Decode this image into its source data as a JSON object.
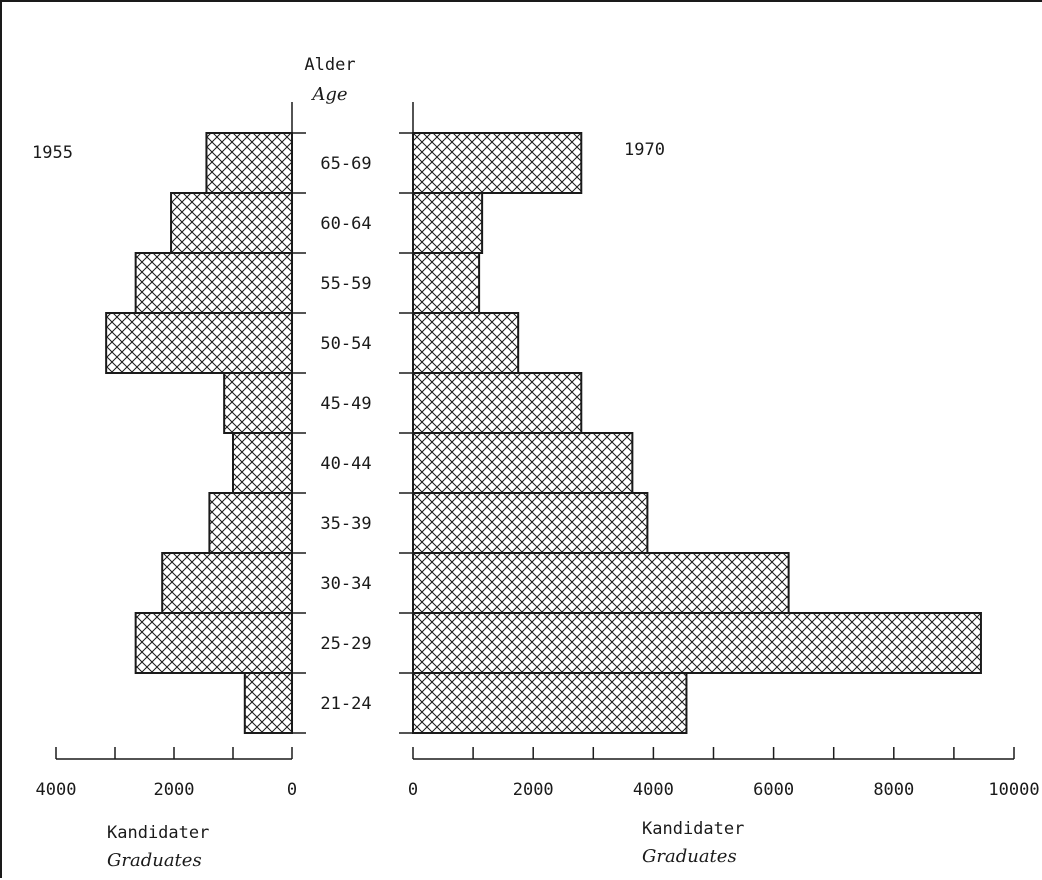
{
  "chart_data": {
    "type": "bar",
    "orientation": "horizontal",
    "layout": "population-pyramid",
    "center_axis_title": "Alder",
    "center_axis_title_alt": "Age",
    "categories": [
      "65-69",
      "60-64",
      "55-59",
      "50-54",
      "45-49",
      "40-44",
      "35-39",
      "30-34",
      "25-29",
      "21-24"
    ],
    "panels": [
      {
        "side": "left",
        "title": "1955",
        "values": [
          1450,
          2050,
          2650,
          3150,
          1150,
          1000,
          1400,
          2200,
          2650,
          800
        ],
        "xlim": [
          0,
          4000
        ],
        "ticks": [
          4000,
          2000,
          0
        ],
        "xlabel": "Kandidater",
        "xlabel_alt": "Graduates"
      },
      {
        "side": "right",
        "title": "1970",
        "values": [
          2800,
          1150,
          1100,
          1750,
          2800,
          3650,
          3900,
          6250,
          9450,
          4550
        ],
        "xlim": [
          0,
          10000
        ],
        "ticks": [
          0,
          2000,
          4000,
          6000,
          8000,
          10000
        ],
        "xlabel": "Kandidater",
        "xlabel_alt": "Graduates"
      }
    ],
    "fill_pattern": "crosshatch",
    "grid": false,
    "legend": "none"
  }
}
